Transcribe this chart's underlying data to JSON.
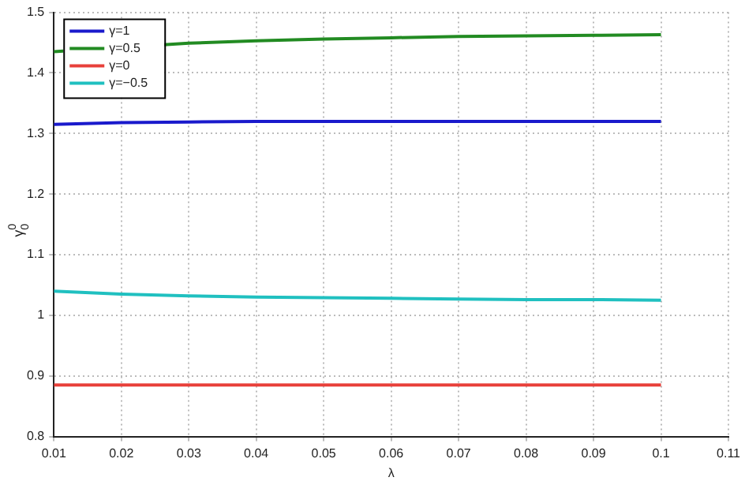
{
  "chart_data": {
    "type": "line",
    "xlabel": "λ",
    "ylabel": "γ$^{0}$$_{0}$",
    "xlim": [
      0.01,
      0.11
    ],
    "xticks": [
      0.01,
      0.02,
      0.03,
      0.04,
      0.05,
      0.06,
      0.07,
      0.08,
      0.09,
      0.1,
      0.11
    ],
    "ylim": [
      0.8,
      1.5
    ],
    "yticks": [
      0.8,
      0.9,
      1,
      1.1,
      1.2,
      1.3,
      1.4,
      1.5
    ],
    "x": [
      0.01,
      0.02,
      0.03,
      0.04,
      0.05,
      0.06,
      0.07,
      0.08,
      0.09,
      0.1
    ],
    "series": [
      {
        "name": "γ=1",
        "color": "#1a1acc",
        "values": [
          1.315,
          1.318,
          1.319,
          1.32,
          1.32,
          1.32,
          1.32,
          1.32,
          1.32,
          1.32
        ]
      },
      {
        "name": "γ=0.5",
        "color": "#228b22",
        "values": [
          1.435,
          null,
          1.449,
          1.453,
          1.456,
          1.458,
          1.46,
          1.461,
          1.462,
          1.463
        ]
      },
      {
        "name": "γ=0",
        "color": "#e8403a",
        "values": [
          0.885,
          0.885,
          0.885,
          0.885,
          0.885,
          0.885,
          0.885,
          0.885,
          0.885,
          0.885
        ]
      },
      {
        "name": "γ=−0.5",
        "color": "#20c0c0",
        "values": [
          1.04,
          1.035,
          1.032,
          1.03,
          1.029,
          1.028,
          1.027,
          1.026,
          1.026,
          1.025
        ]
      }
    ],
    "grid": true,
    "legend": "top left",
    "marker": "none",
    "line_style": "solid"
  }
}
